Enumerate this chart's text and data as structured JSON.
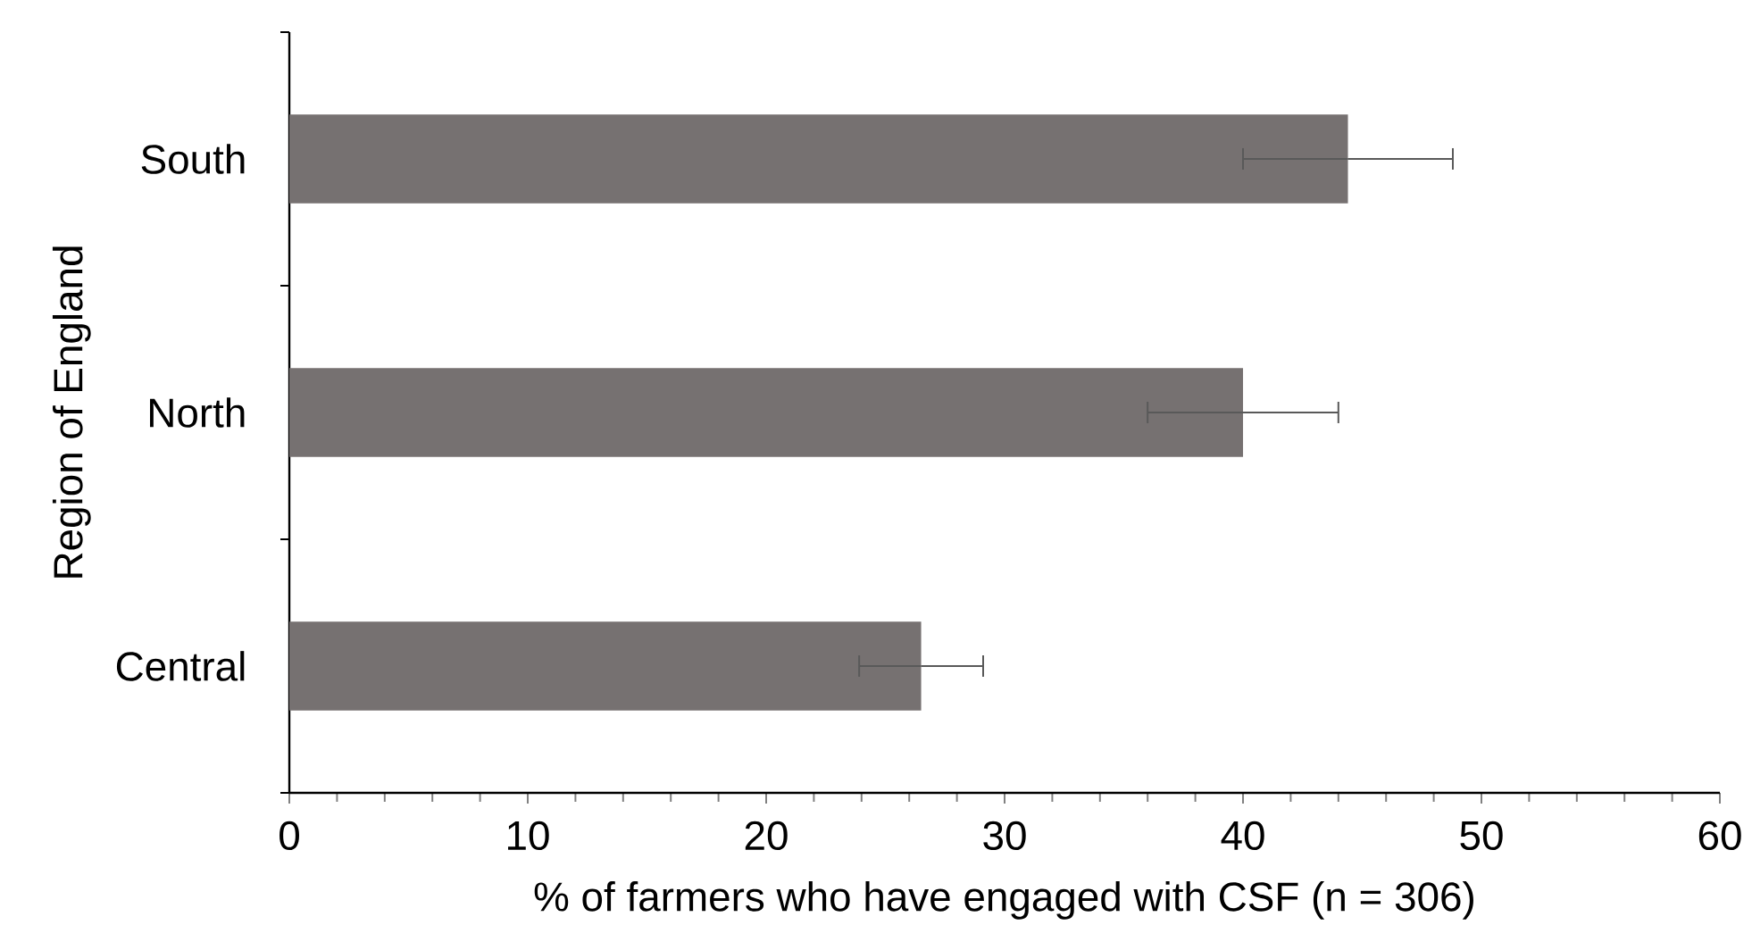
{
  "chart_data": {
    "type": "bar",
    "orientation": "horizontal",
    "xlabel": "% of farmers who have engaged with CSF (n = 306)",
    "ylabel": "Region of England",
    "categories": [
      "South",
      "North",
      "Central"
    ],
    "values": [
      44.4,
      40.0,
      26.5
    ],
    "errors": [
      4.4,
      4.0,
      2.6
    ],
    "color": "#767171",
    "xlim": [
      0,
      60
    ],
    "xticks": [
      0,
      10,
      20,
      30,
      40,
      50,
      60
    ]
  }
}
